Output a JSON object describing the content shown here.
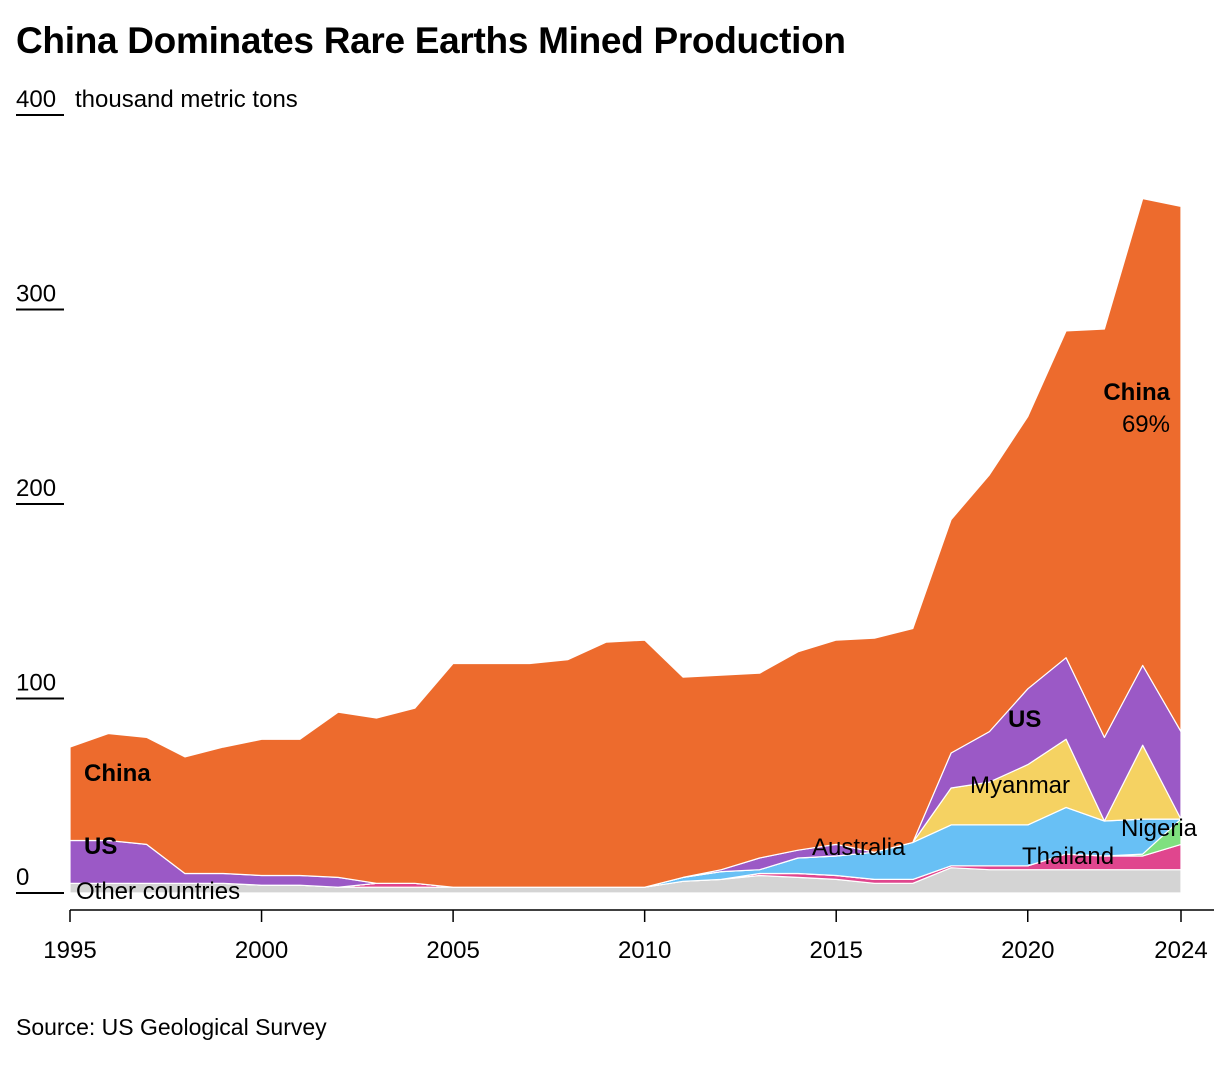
{
  "title": "China Dominates Rare Earths Mined Production",
  "source": "Source: US Geological Survey",
  "chart_data": {
    "type": "area",
    "subtitle": "thousand metric tons",
    "ylim": [
      0,
      400
    ],
    "yticks": [
      0,
      100,
      200,
      300,
      400
    ],
    "xticks": [
      1995,
      2000,
      2005,
      2010,
      2015,
      2020,
      2024
    ],
    "x": [
      1995,
      1996,
      1997,
      1998,
      1999,
      2000,
      2001,
      2002,
      2003,
      2004,
      2005,
      2006,
      2007,
      2008,
      2009,
      2010,
      2011,
      2012,
      2013,
      2014,
      2015,
      2016,
      2017,
      2018,
      2019,
      2020,
      2021,
      2022,
      2023,
      2024
    ],
    "series": [
      {
        "name": "Other countries",
        "color": "#d4d4d4",
        "values": [
          5,
          5,
          5,
          5,
          5,
          4,
          4,
          3,
          3,
          3,
          3,
          3,
          3,
          3,
          3,
          3,
          6,
          7,
          9,
          8,
          7,
          5,
          5,
          13,
          12,
          12,
          12,
          12,
          12,
          12
        ]
      },
      {
        "name": "Thailand",
        "color": "#e0468e",
        "values": [
          0,
          0,
          0,
          0,
          0,
          0,
          0,
          0,
          2,
          2,
          0,
          0,
          0,
          0,
          0,
          0,
          0,
          0,
          1,
          2,
          2,
          2,
          2,
          1,
          2,
          2,
          8,
          7,
          7,
          13
        ]
      },
      {
        "name": "Nigeria",
        "color": "#7fe07f",
        "values": [
          0,
          0,
          0,
          0,
          0,
          0,
          0,
          0,
          0,
          0,
          0,
          0,
          0,
          0,
          0,
          0,
          0,
          0,
          0,
          0,
          0,
          0,
          0,
          0,
          0,
          0,
          0,
          0,
          1,
          13
        ]
      },
      {
        "name": "Australia",
        "color": "#68c0f5",
        "values": [
          0,
          0,
          0,
          0,
          0,
          0,
          0,
          0,
          0,
          0,
          0,
          0,
          0,
          0,
          0,
          0,
          2,
          4,
          2,
          8,
          10,
          14,
          19,
          21,
          21,
          21,
          24,
          18,
          18,
          0
        ]
      },
      {
        "name": "Myanmar",
        "color": "#f5d262",
        "values": [
          0,
          0,
          0,
          0,
          0,
          0,
          0,
          0,
          0,
          0,
          0,
          0,
          0,
          0,
          0,
          0,
          0,
          0,
          0,
          0,
          0,
          0,
          0,
          19,
          22,
          31,
          35,
          0,
          38,
          0
        ]
      },
      {
        "name": "US",
        "color": "#9b59c6",
        "values": [
          22,
          22,
          20,
          5,
          5,
          5,
          5,
          5,
          0,
          0,
          0,
          0,
          0,
          0,
          0,
          0,
          0,
          1,
          6,
          4,
          6,
          0,
          0,
          18,
          26,
          39,
          42,
          43,
          41,
          45
        ]
      },
      {
        "name": "China",
        "color": "#ed6b2d",
        "values": [
          48,
          55,
          55,
          60,
          65,
          70,
          70,
          85,
          85,
          90,
          115,
          115,
          115,
          117,
          126,
          127,
          103,
          100,
          95,
          102,
          105,
          110,
          110,
          120,
          132,
          140,
          168,
          210,
          240,
          270
        ],
        "share_label": "69%"
      }
    ],
    "labels": {
      "china_left": "China",
      "china_right": "China",
      "us_left": "US",
      "us_right": "US",
      "myanmar": "Myanmar",
      "australia": "Australia",
      "thailand": "Thailand",
      "nigeria": "Nigeria",
      "other": "Other countries",
      "china_share": "69%"
    }
  }
}
